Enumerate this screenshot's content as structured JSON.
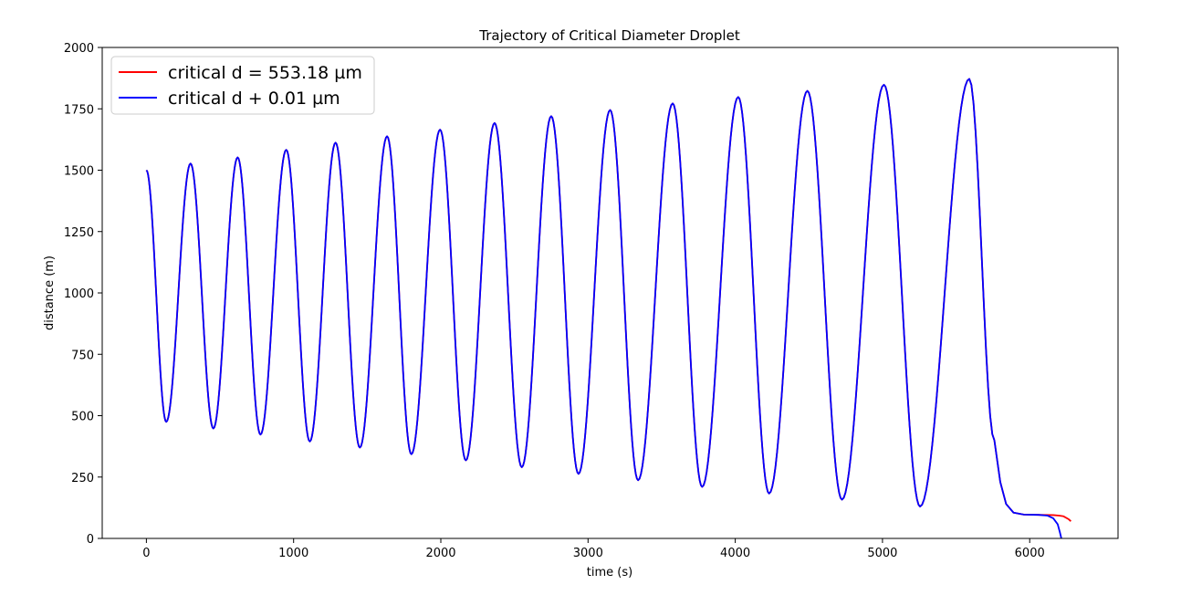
{
  "chart_data": {
    "type": "line",
    "title": "Trajectory of Critical Diameter Droplet",
    "xlabel": "time (s)",
    "ylabel": "distance (m)",
    "xlim": [
      -300,
      6600
    ],
    "ylim": [
      0,
      2000
    ],
    "xticks": [
      0,
      1000,
      2000,
      3000,
      4000,
      5000,
      6000
    ],
    "yticks": [
      0,
      250,
      500,
      750,
      1000,
      1250,
      1500,
      1750,
      2000
    ],
    "grid": false,
    "legend_position": "top-left",
    "peaks": [
      [
        0,
        1500
      ],
      [
        300,
        1527
      ],
      [
        620,
        1552
      ],
      [
        950,
        1583
      ],
      [
        1285,
        1612
      ],
      [
        1635,
        1638
      ],
      [
        1995,
        1665
      ],
      [
        2365,
        1692
      ],
      [
        2750,
        1720
      ],
      [
        3150,
        1745
      ],
      [
        3575,
        1772
      ],
      [
        4020,
        1798
      ],
      [
        4490,
        1823
      ],
      [
        5010,
        1848
      ],
      [
        5590,
        1872
      ]
    ],
    "troughs": [
      [
        135,
        475
      ],
      [
        455,
        448
      ],
      [
        775,
        423
      ],
      [
        1110,
        395
      ],
      [
        1450,
        370
      ],
      [
        1800,
        343
      ],
      [
        2170,
        318
      ],
      [
        2550,
        290
      ],
      [
        2935,
        263
      ],
      [
        3340,
        237
      ],
      [
        3775,
        210
      ],
      [
        4230,
        183
      ],
      [
        4725,
        158
      ],
      [
        5255,
        130
      ]
    ],
    "series": [
      {
        "name": "critical d = 553.18 µm",
        "color": "#ff0000",
        "tail": [
          [
            5760,
            400
          ],
          [
            5800,
            230
          ],
          [
            5840,
            140
          ],
          [
            5890,
            105
          ],
          [
            5960,
            97
          ],
          [
            6060,
            96
          ],
          [
            6160,
            95
          ],
          [
            6200,
            93
          ],
          [
            6230,
            90
          ],
          [
            6265,
            78
          ],
          [
            6280,
            70
          ]
        ]
      },
      {
        "name": "critical d + 0.01 µm",
        "color": "#0000ff",
        "tail": [
          [
            5760,
            400
          ],
          [
            5800,
            230
          ],
          [
            5840,
            140
          ],
          [
            5890,
            105
          ],
          [
            5960,
            97
          ],
          [
            6060,
            96
          ],
          [
            6120,
            93
          ],
          [
            6160,
            82
          ],
          [
            6190,
            58
          ],
          [
            6205,
            25
          ],
          [
            6215,
            0
          ]
        ]
      }
    ]
  }
}
